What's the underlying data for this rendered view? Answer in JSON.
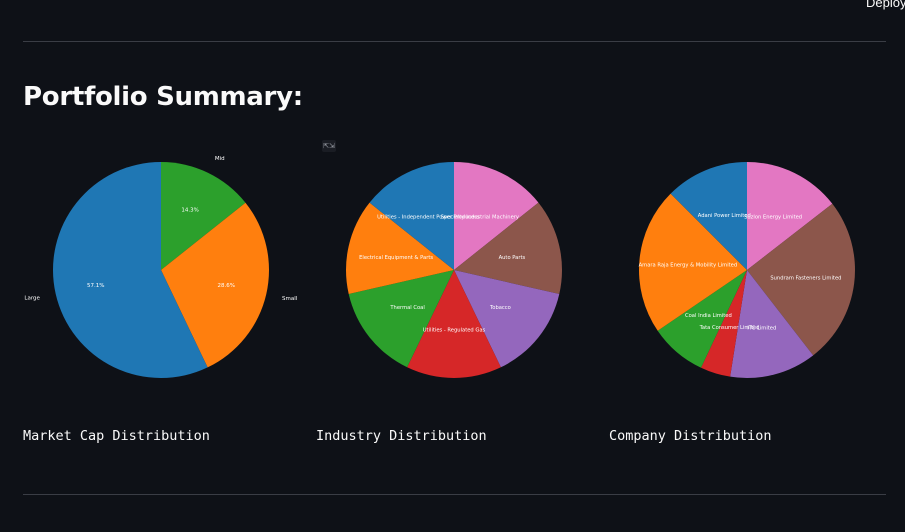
{
  "header": {
    "deploy_label": "Deploy"
  },
  "page": {
    "title": "Portfolio Summary:"
  },
  "charts": {
    "market_cap": {
      "caption": "Market Cap Distribution"
    },
    "industry": {
      "caption": "Industry Distribution"
    },
    "company": {
      "caption": "Company Distribution"
    }
  },
  "colors": {
    "background": "#0e1117",
    "blue": "#1f77b4",
    "orange": "#ff7f0e",
    "green": "#2ca02c",
    "red": "#d62728",
    "purple": "#9467bd",
    "brown": "#8c564b",
    "pink": "#e377c2"
  },
  "icons": {
    "fullscreen": "expand-icon"
  },
  "chart_data": [
    {
      "type": "pie",
      "title": "",
      "slices": [
        {
          "label": "Mid",
          "value": 14.3,
          "pct_label": "14.3%",
          "color": "#2ca02c"
        },
        {
          "label": "Small",
          "value": 28.6,
          "pct_label": "28.6%",
          "color": "#ff7f0e"
        },
        {
          "label": "Large",
          "value": 57.1,
          "pct_label": "57.1%",
          "color": "#1f77b4"
        }
      ]
    },
    {
      "type": "pie",
      "title": "",
      "slices": [
        {
          "label": "Specialty Industrial Machinery",
          "value": 14.3,
          "color": "#e377c2"
        },
        {
          "label": "Auto Parts",
          "value": 14.3,
          "color": "#8c564b"
        },
        {
          "label": "Tobacco",
          "value": 14.3,
          "color": "#9467bd"
        },
        {
          "label": "Utilities - Regulated Gas",
          "value": 14.3,
          "color": "#d62728"
        },
        {
          "label": "Thermal Coal",
          "value": 14.3,
          "color": "#2ca02c"
        },
        {
          "label": "Electrical Equipment & Parts",
          "value": 14.3,
          "color": "#ff7f0e"
        },
        {
          "label": "Utilities - Independent Power Producers",
          "value": 14.3,
          "color": "#1f77b4"
        }
      ]
    },
    {
      "type": "pie",
      "title": "",
      "slices": [
        {
          "label": "Suzlon Energy Limited",
          "value": 14.5,
          "color": "#e377c2"
        },
        {
          "label": "Sundram Fasteners Limited",
          "value": 25.0,
          "color": "#8c564b"
        },
        {
          "label": "ITC Limited",
          "value": 13.0,
          "color": "#9467bd"
        },
        {
          "label": "Tata Consumer Limited",
          "value": 4.5,
          "color": "#d62728"
        },
        {
          "label": "Coal India Limited",
          "value": 8.5,
          "color": "#2ca02c"
        },
        {
          "label": "Amara Raja Energy & Mobility Limited",
          "value": 22.0,
          "color": "#ff7f0e"
        },
        {
          "label": "Adani Power Limited",
          "value": 12.5,
          "color": "#1f77b4"
        }
      ]
    }
  ]
}
